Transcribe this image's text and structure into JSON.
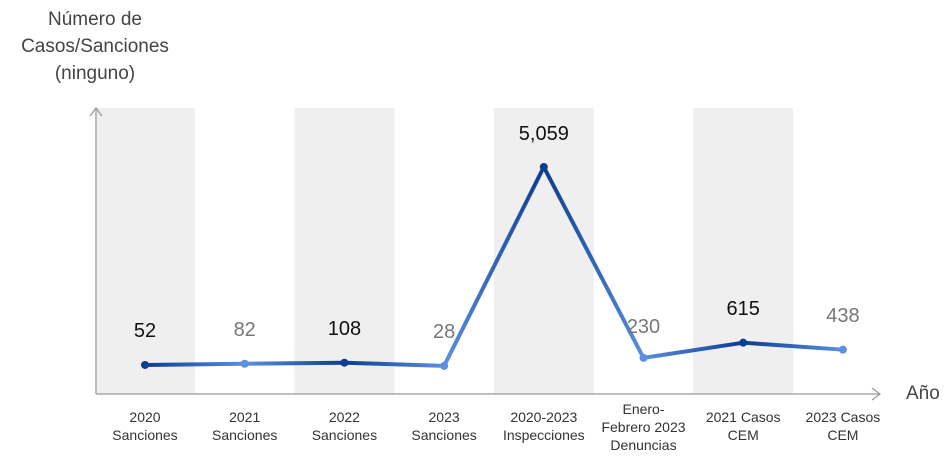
{
  "chart_data": {
    "type": "line",
    "ylabel_lines": [
      "Número de",
      "Casos/Sanciones",
      "(ninguno)"
    ],
    "xlabel": "Año",
    "categories": [
      "2020 Sanciones",
      "2021 Sanciones",
      "2022 Sanciones",
      "2023 Sanciones",
      "2020-2023 Inspecciones",
      "Enero-Febrero 2023 Denuncias",
      "2021 Casos CEM",
      "2023 Casos CEM"
    ],
    "category_lines": [
      [
        "2020",
        "Sanciones"
      ],
      [
        "2021",
        "Sanciones"
      ],
      [
        "2022",
        "Sanciones"
      ],
      [
        "2023",
        "Sanciones"
      ],
      [
        "2020-2023",
        "Inspecciones"
      ],
      [
        "Enero-",
        "Febrero 2023",
        "Denuncias"
      ],
      [
        "2021 Casos",
        "CEM"
      ],
      [
        "2023 Casos",
        "CEM"
      ]
    ],
    "values": [
      52,
      82,
      108,
      28,
      5059,
      230,
      615,
      438
    ],
    "data_labels": [
      "52",
      "82",
      "108",
      "28",
      "5,059",
      "230",
      "615",
      "438"
    ],
    "ylim": [
      0,
      5800
    ],
    "grid": false,
    "colors": {
      "dark": "#0b3d91",
      "light": "#5b8fe0",
      "band": "#efefef"
    }
  }
}
